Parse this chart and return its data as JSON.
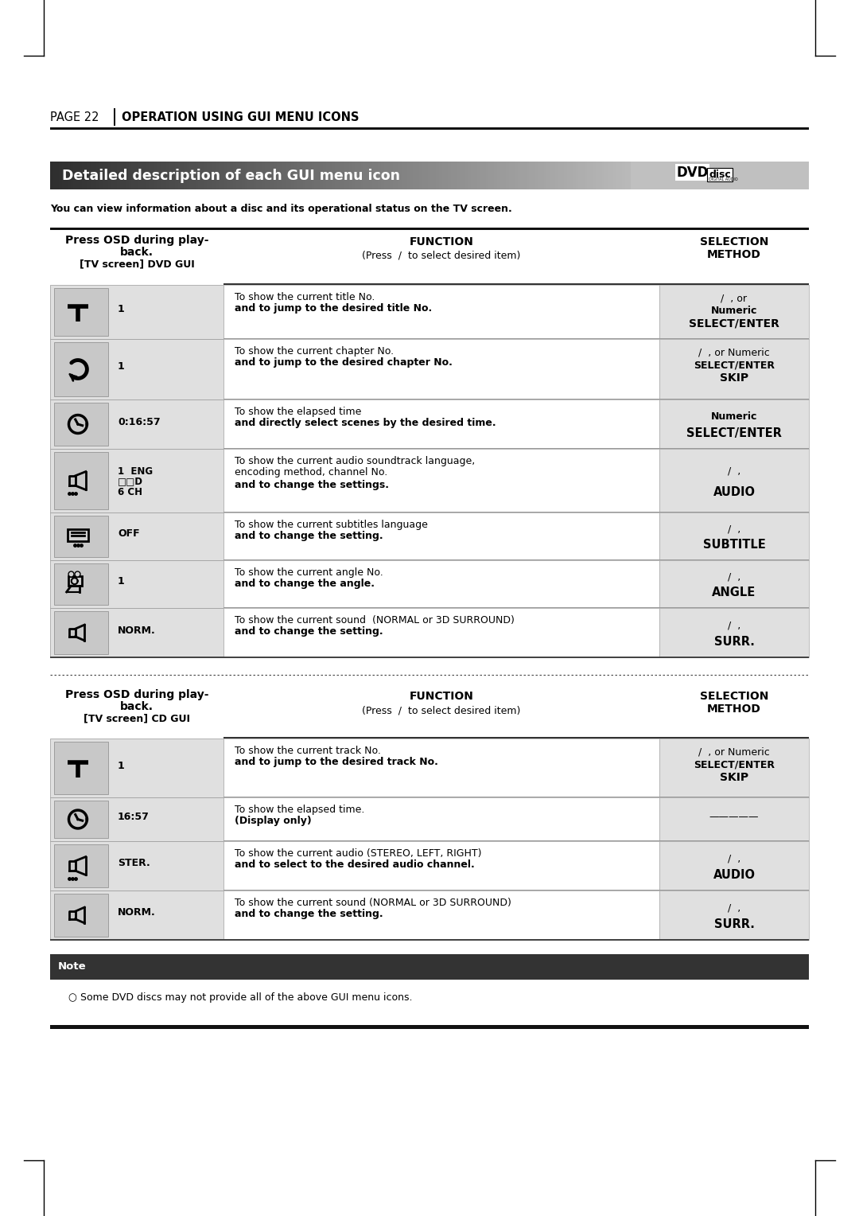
{
  "page_label": "PAGE 22",
  "page_title": "OPERATION USING GUI MENU ICONS",
  "section_title": "Detailed description of each GUI menu icon",
  "intro_text": "You can view information about a disc and its operational status on the TV screen.",
  "bg_color": "#ffffff",
  "row_bg_light": "#e0e0e0",
  "row_bg_white": "#ffffff",
  "dvd_section": {
    "rows": [
      {
        "icon_sub": "1",
        "icon_type": "title",
        "func_normal": "To show the current title No.",
        "func_bold": "and to jump to the desired title No.",
        "sel_lines": [
          "/  , or",
          "Numeric",
          "SELECT/ENTER"
        ],
        "sel_bold": [
          false,
          true,
          true
        ]
      },
      {
        "icon_sub": "1",
        "icon_type": "chapter",
        "func_normal": "To show the current chapter No.",
        "func_bold": "and to jump to the desired chapter No.",
        "sel_lines": [
          "/  , or Numeric",
          "SELECT/ENTER",
          "SKIP"
        ],
        "sel_bold": [
          false,
          true,
          true
        ]
      },
      {
        "icon_sub": "0:16:57",
        "icon_type": "time",
        "func_normal": "To show the elapsed time",
        "func_bold": "and directly select scenes by the desired time.",
        "sel_lines": [
          "Numeric",
          "SELECT/ENTER",
          ""
        ],
        "sel_bold": [
          true,
          true,
          false
        ]
      },
      {
        "icon_sub": "1  ENG\n□□D\n6 CH",
        "icon_type": "audio",
        "func_lines": [
          "To show the current audio soundtrack language,",
          "encoding method, channel No."
        ],
        "func_bold": "and to change the settings.",
        "sel_lines": [
          "/  ,",
          "AUDIO",
          ""
        ],
        "sel_bold": [
          false,
          true,
          false
        ]
      },
      {
        "icon_sub": "OFF",
        "icon_type": "subtitle",
        "func_normal": "To show the current subtitles language",
        "func_bold": "and to change the setting.",
        "sel_lines": [
          "/  ,",
          "SUBTITLE",
          ""
        ],
        "sel_bold": [
          false,
          true,
          false
        ]
      },
      {
        "icon_sub": "1",
        "icon_type": "angle",
        "func_normal": "To show the current angle No.",
        "func_bold": "and to change the angle.",
        "sel_lines": [
          "/  ,",
          "ANGLE",
          ""
        ],
        "sel_bold": [
          false,
          true,
          false
        ]
      },
      {
        "icon_sub": "NORM.",
        "icon_type": "sound",
        "func_normal": "To show the current sound  (NORMAL or 3D SURROUND)",
        "func_bold": "and to change the setting.",
        "sel_lines": [
          "/  ,",
          "SURR.",
          ""
        ],
        "sel_bold": [
          false,
          true,
          false
        ]
      }
    ]
  },
  "cd_section": {
    "rows": [
      {
        "icon_sub": "1",
        "icon_type": "title",
        "func_normal": "To show the current track No.",
        "func_bold": "and to jump to the desired track No.",
        "sel_lines": [
          "/  , or Numeric",
          "SELECT/ENTER",
          "SKIP"
        ],
        "sel_bold": [
          false,
          true,
          true
        ]
      },
      {
        "icon_sub": "16:57",
        "icon_type": "time",
        "func_normal": "To show the elapsed time.",
        "func_bold": "(Display only)",
        "sel_lines": [
          "—————",
          "",
          ""
        ],
        "sel_bold": [
          false,
          false,
          false
        ]
      },
      {
        "icon_sub": "STER.",
        "icon_type": "audio",
        "func_normal": "To show the current audio (STEREO, LEFT, RIGHT)",
        "func_bold": "and to select to the desired audio channel.",
        "sel_lines": [
          "/  ,",
          "AUDIO",
          ""
        ],
        "sel_bold": [
          false,
          true,
          false
        ]
      },
      {
        "icon_sub": "NORM.",
        "icon_type": "sound",
        "func_normal": "To show the current sound (NORMAL or 3D SURROUND)",
        "func_bold": "and to change the setting.",
        "sel_lines": [
          "/  ,",
          "SURR.",
          ""
        ],
        "sel_bold": [
          false,
          true,
          false
        ]
      }
    ]
  },
  "note_text": "Some DVD discs may not provide all of the above GUI menu icons."
}
